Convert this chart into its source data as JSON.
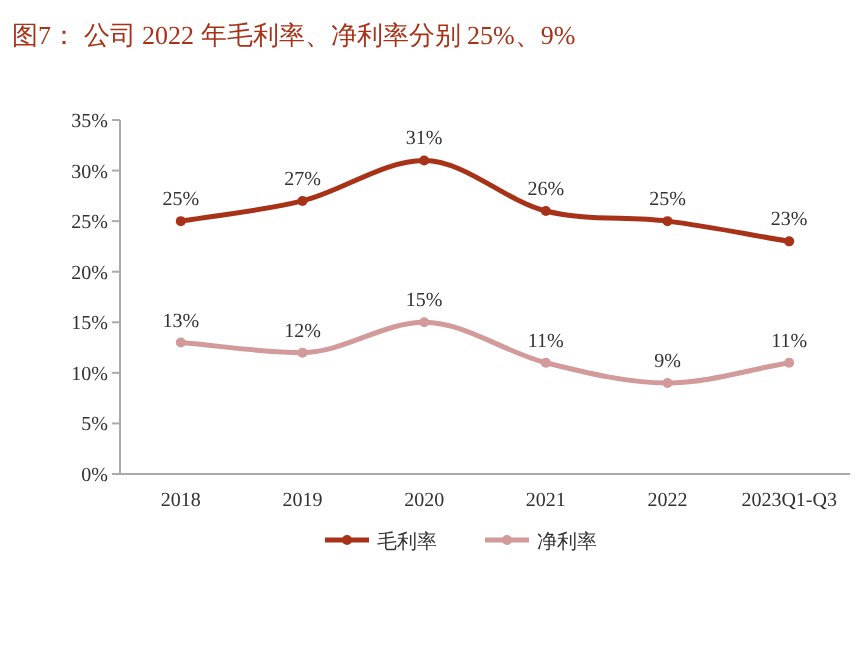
{
  "chart_data": {
    "type": "line",
    "title": "图7：  公司 2022 年毛利率、净利率分别 25%、9%",
    "categories": [
      "2018",
      "2019",
      "2020",
      "2021",
      "2022",
      "2023Q1-Q3"
    ],
    "series": [
      {
        "name": "毛利率",
        "color": "#a83218",
        "values": [
          25,
          27,
          31,
          26,
          25,
          23
        ],
        "value_labels": [
          "25%",
          "27%",
          "31%",
          "26%",
          "25%",
          "23%"
        ]
      },
      {
        "name": "净利率",
        "color": "#d29a9a",
        "values": [
          13,
          12,
          15,
          11,
          9,
          11
        ],
        "value_labels": [
          "13%",
          "12%",
          "15%",
          "11%",
          "9%",
          "11%"
        ]
      }
    ],
    "ylim": [
      0,
      35
    ],
    "yticks": [
      {
        "value": 0,
        "label": "0%"
      },
      {
        "value": 5,
        "label": "5%"
      },
      {
        "value": 10,
        "label": "10%"
      },
      {
        "value": 15,
        "label": "15%"
      },
      {
        "value": 20,
        "label": "20%"
      },
      {
        "value": 25,
        "label": "25%"
      },
      {
        "value": 30,
        "label": "30%"
      },
      {
        "value": 35,
        "label": "35%"
      }
    ],
    "legend": "bottom",
    "marker": "circle",
    "line_style": "solid",
    "grid": false
  }
}
